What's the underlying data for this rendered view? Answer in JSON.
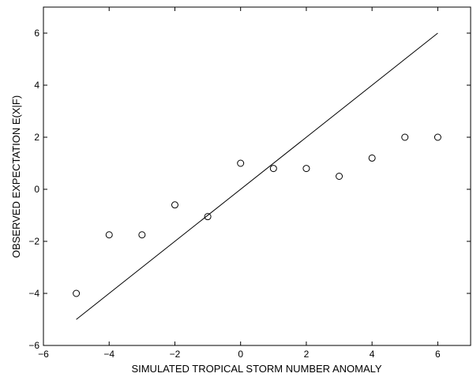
{
  "chart_data": {
    "type": "scatter",
    "title": "",
    "xlabel": "SIMULATED TROPICAL STORM NUMBER ANOMALY",
    "ylabel": "OBSERVED EXPECTATION E(X|F)",
    "xlim": [
      -6,
      7
    ],
    "ylim": [
      -6,
      7
    ],
    "x_ticks": [
      -6,
      -4,
      -2,
      0,
      2,
      4,
      6
    ],
    "y_ticks": [
      -6,
      -4,
      -2,
      0,
      2,
      4,
      6
    ],
    "x_tick_labels": [
      "−6",
      "−4",
      "−2",
      "0",
      "2",
      "4",
      "6"
    ],
    "y_tick_labels": [
      "−6",
      "−4",
      "−2",
      "0",
      "2",
      "4",
      "6"
    ],
    "grid": false,
    "series": [
      {
        "type": "scatter",
        "marker": "open-circle",
        "x": [
          -5,
          -4,
          -3,
          -2,
          -1,
          0,
          1,
          2,
          3,
          4,
          5,
          6
        ],
        "y": [
          -4,
          -1.75,
          -1.75,
          -0.6,
          -1.05,
          1,
          0.8,
          0.8,
          0.5,
          1.2,
          2,
          2
        ]
      },
      {
        "type": "line",
        "x": [
          -5,
          6
        ],
        "y": [
          -5,
          6
        ]
      }
    ]
  }
}
